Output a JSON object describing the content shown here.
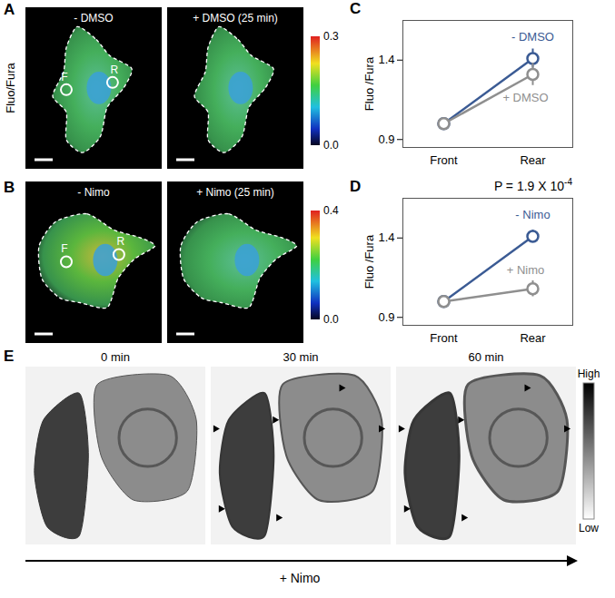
{
  "chart_data": [
    {
      "type": "line",
      "panel": "C",
      "y_label": "Fluo /Fura",
      "categories": [
        "Front",
        "Rear"
      ],
      "ylim": [
        0.85,
        1.65
      ],
      "yticks": [
        0.9,
        1.4
      ],
      "marker": "circle",
      "series": [
        {
          "name": "- DMSO",
          "color": "#3b5b94",
          "values": [
            1.0,
            1.41
          ],
          "errors": [
            0,
            0.06
          ]
        },
        {
          "name": "+ DMSO",
          "color": "#8f8f8f",
          "values": [
            1.0,
            1.31
          ],
          "errors": [
            0,
            0.07
          ]
        }
      ]
    },
    {
      "type": "line",
      "panel": "D",
      "y_label": "Fluo /Fura",
      "categories": [
        "Front",
        "Rear"
      ],
      "ylim": [
        0.85,
        1.65
      ],
      "yticks": [
        0.9,
        1.4
      ],
      "marker": "circle",
      "annotation": {
        "text": "P = 1.9 X 10",
        "superscript": "-4"
      },
      "series": [
        {
          "name": "- Nimo",
          "color": "#3b5b94",
          "values": [
            1.0,
            1.41
          ],
          "errors": [
            0,
            0.04
          ]
        },
        {
          "name": "+ Nimo",
          "color": "#8f8f8f",
          "values": [
            1.0,
            1.08
          ],
          "errors": [
            0,
            0.05
          ]
        }
      ]
    }
  ],
  "panels": {
    "A": {
      "letter": "A",
      "row_label": "Fluo/Fura",
      "images": [
        "- DMSO",
        "+ DMSO (25 min)"
      ],
      "markers": [
        "F",
        "R"
      ],
      "colorbar": {
        "range": [
          0,
          0.3
        ],
        "ticks": [
          {
            "value": 0,
            "label": "0.0"
          },
          0.3
        ]
      }
    },
    "B": {
      "letter": "B",
      "images": [
        "- Nimo",
        "+ Nimo (25 min)"
      ],
      "markers": [
        "F",
        "R"
      ],
      "colorbar": {
        "range": [
          0,
          0.4
        ],
        "ticks": [
          {
            "value": 0,
            "label": "0.0"
          },
          0.4
        ]
      }
    },
    "E": {
      "letter": "E",
      "images": [
        "0 min",
        "30 min",
        "60 min"
      ],
      "scale_labels": {
        "high": "High",
        "low": "Low"
      },
      "treatment": "+ Nimo"
    }
  }
}
